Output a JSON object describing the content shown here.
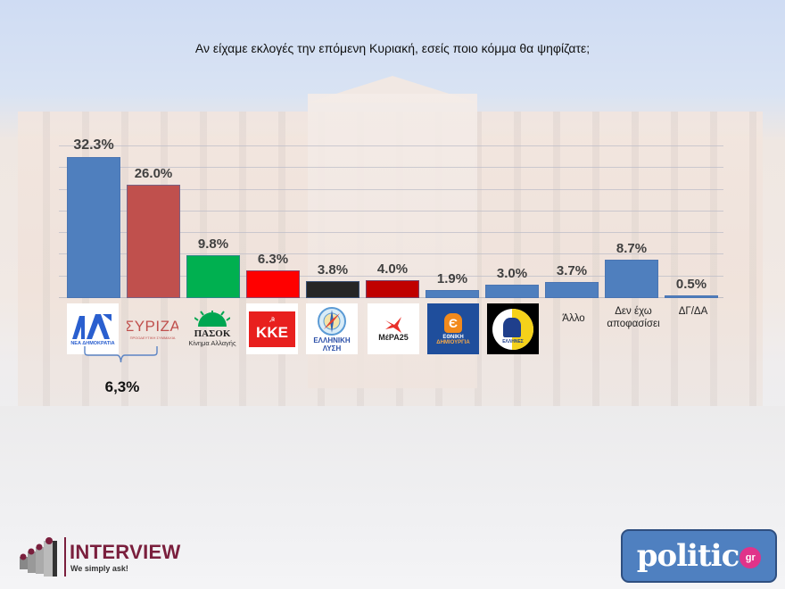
{
  "title": "Αν είχαμε εκλογές την επόμενη Κυριακή, εσείς ποιο κόμμα θα ψηφίζατε;",
  "chart_data": {
    "type": "bar",
    "title": "Αν είχαμε εκλογές την επόμενη Κυριακή, εσείς ποιο κόμμα θα ψηφίζατε;",
    "xlabel": "",
    "ylabel": "",
    "ylim": [
      0,
      37.5
    ],
    "grid": true,
    "legend": null,
    "categories": [
      "Νέα Δημοκρατία",
      "ΣΥΡΙΖΑ",
      "ΠΑΣΟΚ - Κίνημα Αλλαγής",
      "ΚΚΕ",
      "Ελληνική Λύση",
      "ΜέΡΑ25",
      "Εθνική Δημιουργία",
      "Έλληνες",
      "Άλλο",
      "Δεν έχω αποφασίσει",
      "ΔΓ/ΔΑ"
    ],
    "values": [
      32.3,
      26.0,
      9.8,
      6.3,
      3.8,
      4.0,
      1.9,
      3.0,
      3.7,
      8.7,
      0.5
    ],
    "value_labels": [
      "32.3%",
      "26.0%",
      "9.8%",
      "6.3%",
      "3.8%",
      "4.0%",
      "1.9%",
      "3.0%",
      "3.7%",
      "8.7%",
      "0.5%"
    ],
    "bar_colors": [
      "#4f7fbe",
      "#c0504d",
      "#00b050",
      "#ff0000",
      "#262626",
      "#c00000",
      "#4f7fbe",
      "#4f7fbe",
      "#4f7fbe",
      "#4f7fbe",
      "#4f7fbe"
    ],
    "annotations": [
      {
        "text": "6,3%",
        "type": "brace",
        "spans": [
          "Νέα Δημοκρατία",
          "ΣΥΡΙΖΑ"
        ],
        "meaning": "difference between first and second"
      }
    ]
  },
  "logos": {
    "nd": {
      "mark": "ΝΔ",
      "caption": "ΝΕΑ ΔΗΜΟΚΡΑΤΙΑ"
    },
    "syriza": {
      "mark": "ΣΥΡΙΖΑ",
      "caption": "ΠΡΟΟΔΕΥΤΙΚΗ ΣΥΜΜΑΧΙΑ"
    },
    "pasok": {
      "mark": "ΠΑΣΟΚ",
      "caption": "Κίνημα Αλλαγής"
    },
    "kke": {
      "mark": "ΚΚΕ"
    },
    "el_lysi": {
      "line1": "ΕΛΛΗΝΙΚΗ",
      "line2": "ΛΥΣΗ"
    },
    "mera25": {
      "mark": "ΜέΡΑ25"
    },
    "ethniki": {
      "mark": "Є",
      "line1": "ΕΘΝΙΚΗ",
      "line2": "ΔΗΜΙΟΥΡΓΙΑ"
    },
    "ellines": {
      "caption": "ΕΛΛΗΝΕΣ"
    }
  },
  "text_categories": {
    "allo": "Άλλο",
    "undecided_1": "Δεν έχω",
    "undecided_2": "αποφασίσει",
    "dk": "ΔΓ/ΔΑ"
  },
  "annotation_label": "6,3%",
  "footer": {
    "interview_name": "INTERVIEW",
    "interview_tagline": "We simply ask!",
    "politic_name": "politic",
    "politic_suffix": "gr"
  },
  "colors": {
    "interview_brand": "#7a1f3d",
    "politic_blue": "#4f80c0",
    "politic_pink": "#e0338a"
  }
}
